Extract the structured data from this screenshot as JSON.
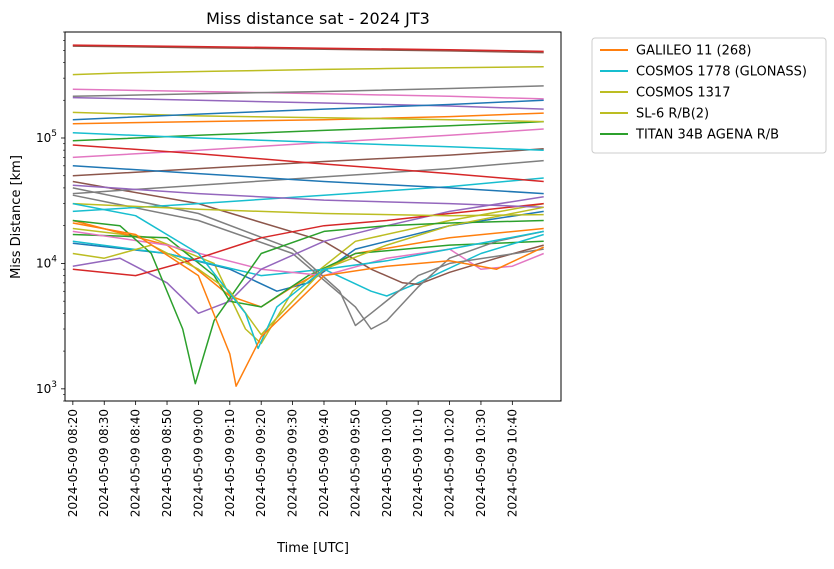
{
  "chart_data": {
    "type": "line",
    "title": "Miss distance sat - 2024 JT3",
    "xlabel": "Time [UTC]",
    "ylabel": "Miss Distance [km]",
    "yscale": "log",
    "ylim": [
      800,
      700000
    ],
    "xlim_minutes": [
      -2.5,
      155.5
    ],
    "x_tick_labels": [
      "2024-05-09 08:20",
      "2024-05-09 08:30",
      "2024-05-09 08:40",
      "2024-05-09 08:50",
      "2024-05-09 09:00",
      "2024-05-09 09:10",
      "2024-05-09 09:20",
      "2024-05-09 09:30",
      "2024-05-09 09:40",
      "2024-05-09 09:50",
      "2024-05-09 10:00",
      "2024-05-09 10:10",
      "2024-05-09 10:20",
      "2024-05-09 10:30",
      "2024-05-09 10:40"
    ],
    "y_ticks": [
      {
        "value": 1000,
        "base": "10",
        "exp": "3"
      },
      {
        "value": 10000,
        "base": "10",
        "exp": "4"
      },
      {
        "value": 100000,
        "base": "10",
        "exp": "5"
      }
    ],
    "legend": {
      "placement": "outside-upper-right",
      "entries": [
        {
          "label": "GALILEO 11 (268)",
          "color": "#ff7f0e"
        },
        {
          "label": "COSMOS 1778 (GLONASS)",
          "color": "#17becf"
        },
        {
          "label": "COSMOS 1317",
          "color": "#bcbd22"
        },
        {
          "label": "SL-6 R/B(2)",
          "color": "#bcbd22"
        },
        {
          "label": "TITAN 34B AGENA R/B",
          "color": "#2ca02c"
        }
      ]
    },
    "series": [
      {
        "name": "GALILEO 11 (268)",
        "color": "#ff7f0e",
        "x": [
          0,
          20,
          40,
          50,
          52,
          60,
          80,
          100,
          120,
          135,
          150
        ],
        "y": [
          21000,
          17000,
          8000,
          1900,
          1050,
          2600,
          8000,
          9500,
          10500,
          9000,
          13500
        ]
      },
      {
        "name": "COSMOS 1778 (GLONASS)",
        "color": "#17becf",
        "x": [
          0,
          20,
          40,
          55,
          59,
          65,
          80,
          100,
          120,
          150
        ],
        "y": [
          30000,
          24000,
          12000,
          4000,
          2100,
          4500,
          9000,
          10500,
          13000,
          18000
        ]
      },
      {
        "name": "COSMOS 1317",
        "color": "#bcbd22",
        "x": [
          0,
          15,
          30,
          45,
          50,
          60,
          80,
          100,
          120,
          150
        ],
        "y": [
          320000,
          330000,
          335000,
          340000,
          342000,
          345000,
          352000,
          358000,
          363000,
          370000
        ]
      },
      {
        "name": "SL-6 R/B(2)",
        "color": "#bcbd22",
        "x": [
          0,
          10,
          25,
          40,
          50,
          60,
          70,
          80,
          100,
          120,
          150
        ],
        "y": [
          12000,
          11000,
          14000,
          9000,
          6000,
          2700,
          5000,
          9000,
          14000,
          20000,
          28000
        ]
      },
      {
        "name": "TITAN 34B AGENA R/B",
        "color": "#2ca02c",
        "x": [
          0,
          15,
          25,
          35,
          39,
          45,
          60,
          80,
          100,
          120,
          150
        ],
        "y": [
          22000,
          20000,
          12000,
          3000,
          1100,
          3500,
          12000,
          18000,
          20000,
          21000,
          22000
        ]
      },
      {
        "color": "#d62728",
        "x": [
          0,
          40,
          80,
          120,
          150
        ],
        "y": [
          550000,
          535000,
          520000,
          505000,
          490000
        ]
      },
      {
        "color": "#8c564b",
        "x": [
          0,
          40,
          80,
          120,
          150
        ],
        "y": [
          540000,
          525000,
          510000,
          495000,
          480000
        ]
      },
      {
        "color": "#7f7f7f",
        "x": [
          0,
          40,
          80,
          120,
          150
        ],
        "y": [
          215000,
          225000,
          235000,
          248000,
          260000
        ]
      },
      {
        "color": "#e377c2",
        "x": [
          0,
          40,
          80,
          120,
          150
        ],
        "y": [
          245000,
          235000,
          225000,
          215000,
          205000
        ]
      },
      {
        "color": "#1f77b4",
        "x": [
          0,
          40,
          80,
          120,
          150
        ],
        "y": [
          140000,
          155000,
          170000,
          185000,
          200000
        ]
      },
      {
        "color": "#9467bd",
        "x": [
          0,
          40,
          80,
          120,
          150
        ],
        "y": [
          210000,
          200000,
          190000,
          180000,
          170000
        ]
      },
      {
        "color": "#bcbd22",
        "x": [
          0,
          40,
          80,
          120,
          150
        ],
        "y": [
          160000,
          150000,
          145000,
          140000,
          135000
        ]
      },
      {
        "color": "#ff7f0e",
        "x": [
          0,
          40,
          80,
          120,
          150
        ],
        "y": [
          130000,
          135000,
          140000,
          148000,
          158000
        ]
      },
      {
        "color": "#17becf",
        "x": [
          0,
          40,
          80,
          120,
          150
        ],
        "y": [
          110000,
          100000,
          92000,
          85000,
          80000
        ]
      },
      {
        "color": "#2ca02c",
        "x": [
          0,
          40,
          80,
          120,
          150
        ],
        "y": [
          95000,
          105000,
          115000,
          125000,
          135000
        ]
      },
      {
        "color": "#d62728",
        "x": [
          0,
          40,
          80,
          120,
          150
        ],
        "y": [
          88000,
          75000,
          62000,
          52000,
          45000
        ]
      },
      {
        "color": "#e377c2",
        "x": [
          0,
          40,
          80,
          120,
          150
        ],
        "y": [
          70000,
          80000,
          92000,
          105000,
          118000
        ]
      },
      {
        "color": "#1f77b4",
        "x": [
          0,
          40,
          80,
          120,
          150
        ],
        "y": [
          60000,
          52000,
          45000,
          40000,
          36000
        ]
      },
      {
        "color": "#8c564b",
        "x": [
          0,
          40,
          80,
          120,
          150
        ],
        "y": [
          50000,
          57000,
          65000,
          73000,
          82000
        ]
      },
      {
        "color": "#9467bd",
        "x": [
          0,
          40,
          80,
          120,
          150
        ],
        "y": [
          42000,
          36000,
          32000,
          30000,
          28000
        ]
      },
      {
        "color": "#7f7f7f",
        "x": [
          0,
          40,
          80,
          120,
          150
        ],
        "y": [
          36000,
          42000,
          49000,
          57000,
          66000
        ]
      },
      {
        "color": "#bcbd22",
        "x": [
          0,
          40,
          80,
          120,
          150
        ],
        "y": [
          30000,
          27000,
          25000,
          24000,
          24500
        ]
      },
      {
        "color": "#17becf",
        "x": [
          0,
          40,
          80,
          120,
          150
        ],
        "y": [
          26000,
          30000,
          35000,
          41000,
          48000
        ]
      },
      {
        "color": "#d62728",
        "x": [
          0,
          20,
          40,
          60,
          80,
          100,
          120,
          150
        ],
        "y": [
          9000,
          8000,
          11000,
          16000,
          20000,
          22000,
          25000,
          30000
        ]
      },
      {
        "color": "#9467bd",
        "x": [
          0,
          15,
          30,
          40,
          50,
          60,
          80,
          100,
          120,
          150
        ],
        "y": [
          9500,
          11000,
          7000,
          4000,
          5000,
          9000,
          15000,
          20000,
          26000,
          34000
        ]
      },
      {
        "color": "#7f7f7f",
        "x": [
          0,
          40,
          70,
          90,
          95,
          100,
          110,
          120,
          135,
          150
        ],
        "y": [
          35000,
          22000,
          12000,
          4500,
          3000,
          3500,
          6500,
          11000,
          15000,
          18000
        ]
      },
      {
        "color": "#7f7f7f",
        "x": [
          0,
          40,
          70,
          85,
          90,
          95,
          110,
          120,
          150
        ],
        "y": [
          40000,
          25000,
          13000,
          6000,
          3200,
          4000,
          8000,
          10000,
          13000
        ]
      },
      {
        "color": "#8c564b",
        "x": [
          0,
          40,
          80,
          95,
          105,
          110,
          120,
          135,
          150
        ],
        "y": [
          45000,
          30000,
          15000,
          9000,
          7000,
          6800,
          8500,
          11000,
          14000
        ]
      },
      {
        "color": "#e377c2",
        "x": [
          0,
          30,
          60,
          80,
          100,
          120,
          130,
          140,
          150
        ],
        "y": [
          18000,
          14000,
          9000,
          8000,
          11000,
          13000,
          9000,
          9500,
          12000
        ]
      },
      {
        "color": "#17becf",
        "x": [
          0,
          30,
          60,
          80,
          95,
          100,
          110,
          130,
          150
        ],
        "y": [
          15000,
          12000,
          8000,
          9000,
          6000,
          5500,
          7000,
          12000,
          17000
        ]
      },
      {
        "color": "#2ca02c",
        "x": [
          0,
          30,
          45,
          50,
          60,
          75,
          90,
          120,
          150
        ],
        "y": [
          17000,
          16000,
          8000,
          5000,
          4500,
          8000,
          12000,
          14000,
          15000
        ]
      },
      {
        "color": "#ff7f0e",
        "x": [
          0,
          30,
          50,
          60,
          70,
          90,
          120,
          150
        ],
        "y": [
          22000,
          14000,
          5500,
          4500,
          6500,
          12000,
          16000,
          19000
        ]
      },
      {
        "color": "#1f77b4",
        "x": [
          0,
          30,
          50,
          65,
          75,
          90,
          120,
          150
        ],
        "y": [
          14500,
          12000,
          9000,
          6000,
          7000,
          13000,
          20000,
          26000
        ]
      },
      {
        "color": "#bcbd22",
        "x": [
          0,
          25,
          45,
          55,
          60,
          70,
          90,
          120,
          150
        ],
        "y": [
          19000,
          16000,
          10000,
          3000,
          2300,
          6000,
          15000,
          22000,
          30000
        ]
      }
    ]
  }
}
